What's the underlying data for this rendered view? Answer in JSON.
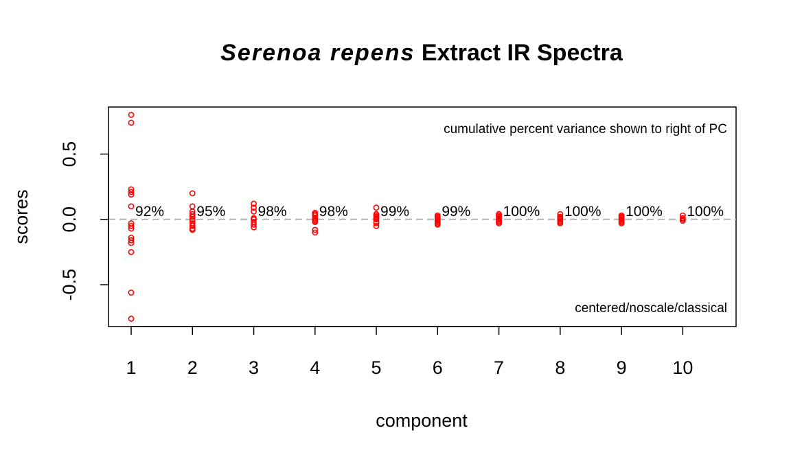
{
  "chart_data": {
    "type": "scatter",
    "title": {
      "italic_part": "Serenoa repens",
      "normal_part": "Extract IR Spectra"
    },
    "xlabel": "component",
    "ylabel": "scores",
    "x_ticks": [
      1,
      2,
      3,
      4,
      5,
      6,
      7,
      8,
      9,
      10
    ],
    "y_ticks": [
      {
        "value": -0.5,
        "label": "-0.5"
      },
      {
        "value": 0.0,
        "label": "0.0"
      },
      {
        "value": 0.5,
        "label": "0.5"
      }
    ],
    "xlim": [
      0.63,
      10.87
    ],
    "ylim": [
      -0.82,
      0.86
    ],
    "reference_line": {
      "y": 0.0,
      "style": "dashed",
      "color": "#b3b3b3"
    },
    "point_color": "#ff0000",
    "annotation_top_right": "cumulative percent variance shown to right of PC",
    "annotation_bottom_right": "centered/noscale/classical",
    "series": [
      {
        "component": 1,
        "cumulative_variance": "92%",
        "scores": [
          0.8,
          0.74,
          0.23,
          0.21,
          0.19,
          0.1,
          -0.03,
          -0.05,
          -0.07,
          -0.14,
          -0.16,
          -0.18,
          -0.25,
          -0.56,
          -0.76
        ]
      },
      {
        "component": 2,
        "cumulative_variance": "95%",
        "scores": [
          0.2,
          0.1,
          0.06,
          0.04,
          0.02,
          0.0,
          -0.01,
          -0.03,
          -0.05,
          -0.07,
          -0.08
        ]
      },
      {
        "component": 3,
        "cumulative_variance": "98%",
        "scores": [
          0.12,
          0.09,
          0.06,
          0.01,
          0.0,
          -0.02,
          -0.04,
          -0.06
        ]
      },
      {
        "component": 4,
        "cumulative_variance": "98%",
        "scores": [
          0.05,
          0.04,
          0.03,
          0.01,
          0.0,
          -0.01,
          -0.02,
          -0.08,
          -0.1
        ]
      },
      {
        "component": 5,
        "cumulative_variance": "99%",
        "scores": [
          0.09,
          0.04,
          0.03,
          0.02,
          0.01,
          0.0,
          -0.02,
          -0.03,
          -0.05
        ]
      },
      {
        "component": 6,
        "cumulative_variance": "99%",
        "scores": [
          0.03,
          0.02,
          0.01,
          0.0,
          -0.01,
          -0.02,
          -0.03,
          -0.04
        ]
      },
      {
        "component": 7,
        "cumulative_variance": "100%",
        "scores": [
          0.04,
          0.03,
          0.02,
          0.01,
          0.0,
          -0.01,
          -0.02,
          -0.03
        ]
      },
      {
        "component": 8,
        "cumulative_variance": "100%",
        "scores": [
          0.04,
          0.02,
          0.01,
          0.0,
          -0.01,
          -0.02,
          -0.03
        ]
      },
      {
        "component": 9,
        "cumulative_variance": "100%",
        "scores": [
          0.03,
          0.02,
          0.01,
          0.0,
          -0.01,
          -0.02,
          -0.03
        ]
      },
      {
        "component": 10,
        "cumulative_variance": "100%",
        "scores": [
          0.03,
          0.01,
          0.0,
          -0.01
        ]
      }
    ]
  }
}
